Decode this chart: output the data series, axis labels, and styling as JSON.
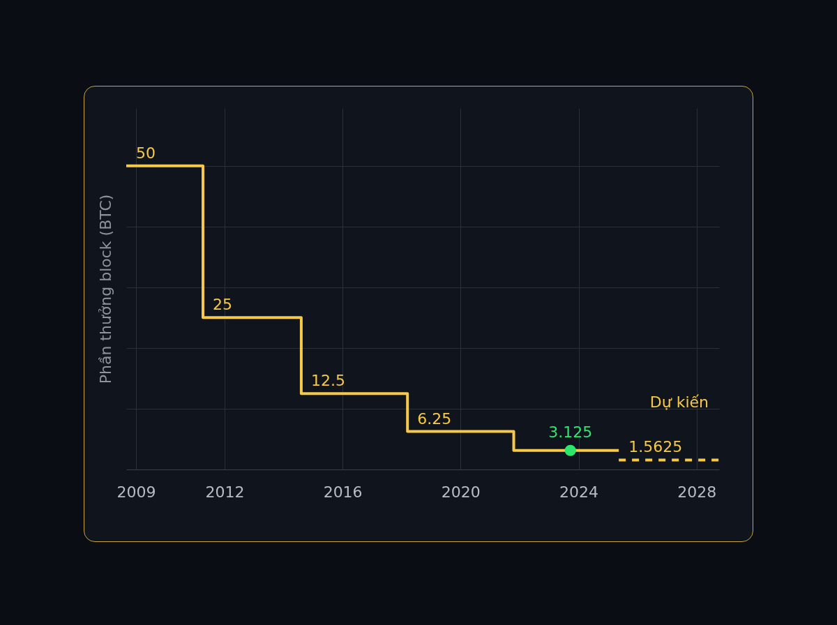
{
  "chart_data": {
    "type": "step",
    "ylabel": "Phần thưởng block (BTC)",
    "xlim": [
      2008.67,
      2028.76
    ],
    "xticks": [
      2009,
      2012,
      2016,
      2020,
      2024,
      2028
    ],
    "grid": true,
    "annotations": [
      "Dự kiến"
    ],
    "series": [
      {
        "color": "#f7c948",
        "line_style": "solid",
        "x": [
          2008.67,
          2011.27,
          2014.6,
          2018.2,
          2021.8,
          2025.36
        ],
        "values": [
          50,
          25,
          12.5,
          6.25,
          3.125,
          3.125
        ],
        "value_labels": [
          "50",
          "25",
          "12.5",
          "6.25",
          null,
          null
        ]
      },
      {
        "type": "line",
        "color": "#f7c948",
        "line_style": "dashed",
        "x": [
          2025.36,
          2028.76
        ],
        "values": [
          1.5625,
          1.5625
        ],
        "value_labels": [
          "1.5625",
          null
        ]
      },
      {
        "type": "scatter",
        "color": "#2ee66b",
        "marker": "circle",
        "x": [
          2023.72
        ],
        "values": [
          3.125
        ],
        "value_labels": [
          "3.125"
        ]
      }
    ]
  }
}
